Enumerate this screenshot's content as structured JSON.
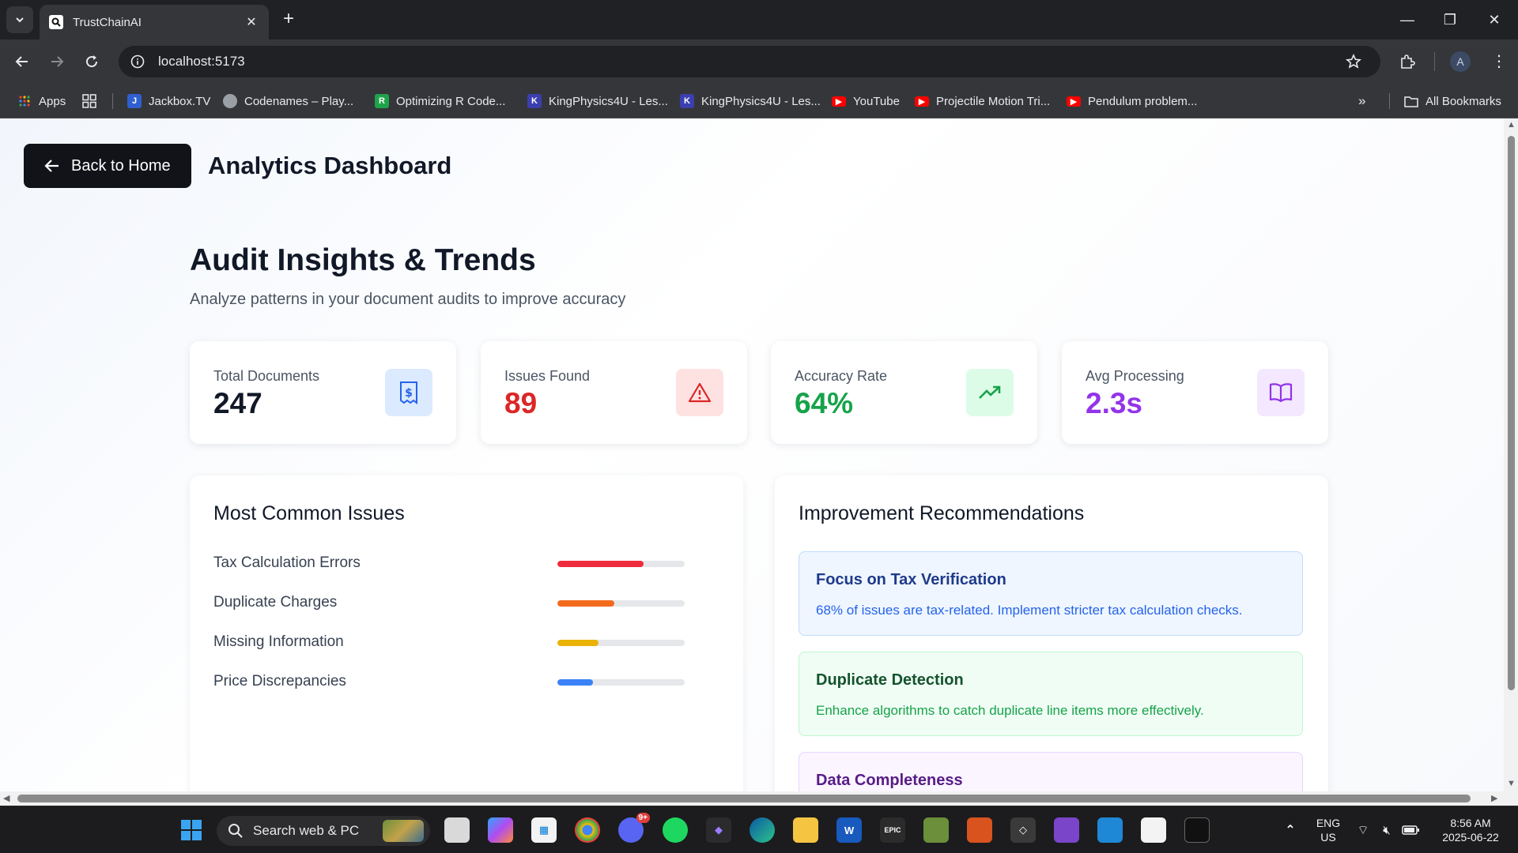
{
  "browser": {
    "tab_title": "TrustChainAI",
    "url": "localhost:5173",
    "profile_initial": "A",
    "bookmarks": [
      {
        "label": "Apps",
        "icon": "apps-grid-icon",
        "color": "#ea4335"
      },
      {
        "label": "Jackbox.TV",
        "icon": "jackbox-icon",
        "color": "#2f5fd0"
      },
      {
        "label": "Codenames – Play...",
        "icon": "codenames-icon",
        "color": "#9aa0a6"
      },
      {
        "label": "Optimizing R Code...",
        "icon": "rc-icon",
        "color": "#1fa34a"
      },
      {
        "label": "KingPhysics4U - Les...",
        "icon": "kingphysics-icon",
        "color": "#3b3fb0"
      },
      {
        "label": "KingPhysics4U - Les...",
        "icon": "kingphysics-icon",
        "color": "#3b3fb0"
      },
      {
        "label": "YouTube",
        "icon": "youtube-icon",
        "color": "#ff0000"
      },
      {
        "label": "Projectile Motion Tri...",
        "icon": "youtube-icon",
        "color": "#ff0000"
      },
      {
        "label": "Pendulum problem...",
        "icon": "youtube-icon",
        "color": "#ff0000"
      }
    ],
    "all_bookmarks": "All Bookmarks"
  },
  "page": {
    "back_label": "Back to Home",
    "title": "Analytics Dashboard",
    "heading": "Audit Insights & Trends",
    "subtitle": "Analyze patterns in your document audits to improve accuracy"
  },
  "stats": [
    {
      "label": "Total Documents",
      "value": "247",
      "color": "#111827",
      "icon": "receipt-dollar-icon",
      "icon_bg": "#dbeafe",
      "icon_color": "#2563eb"
    },
    {
      "label": "Issues Found",
      "value": "89",
      "color": "#dc2626",
      "icon": "warning-triangle-icon",
      "icon_bg": "#fee2e2",
      "icon_color": "#dc2626"
    },
    {
      "label": "Accuracy Rate",
      "value": "64%",
      "color": "#16a34a",
      "icon": "trending-up-icon",
      "icon_bg": "#dcfce7",
      "icon_color": "#16a34a"
    },
    {
      "label": "Avg Processing",
      "value": "2.3s",
      "color": "#9333ea",
      "icon": "book-open-icon",
      "icon_bg": "#f3e8ff",
      "icon_color": "#9333ea"
    }
  ],
  "issues": {
    "title": "Most Common Issues",
    "items": [
      {
        "label": "Tax Calculation Errors",
        "fraction": 0.68,
        "color": "#ef2c3e"
      },
      {
        "label": "Duplicate Charges",
        "fraction": 0.45,
        "color": "#f26b1d"
      },
      {
        "label": "Missing Information",
        "fraction": 0.32,
        "color": "#eab308"
      },
      {
        "label": "Price Discrepancies",
        "fraction": 0.28,
        "color": "#3b82f6"
      }
    ]
  },
  "recommendations": {
    "title": "Improvement Recommendations",
    "items": [
      {
        "title": "Focus on Tax Verification",
        "body": "68% of issues are tax-related. Implement stricter tax calculation checks.",
        "bg": "#eff6ff",
        "border": "#bfdbfe",
        "title_color": "#1e3a8a",
        "body_color": "#2563eb"
      },
      {
        "title": "Duplicate Detection",
        "body": "Enhance algorithms to catch duplicate line items more effectively.",
        "bg": "#f0fdf4",
        "border": "#bbf7d0",
        "title_color": "#14532d",
        "body_color": "#16a34a"
      },
      {
        "title": "Data Completeness",
        "body": "",
        "bg": "#faf5ff",
        "border": "#e9d5ff",
        "title_color": "#581c87",
        "body_color": "#9333ea"
      }
    ]
  },
  "taskbar": {
    "search_placeholder": "Search web & PC",
    "lang_line1": "ENG",
    "lang_line2": "US",
    "time": "8:56 AM",
    "date": "2025-06-22",
    "discord_badge": "9+"
  }
}
